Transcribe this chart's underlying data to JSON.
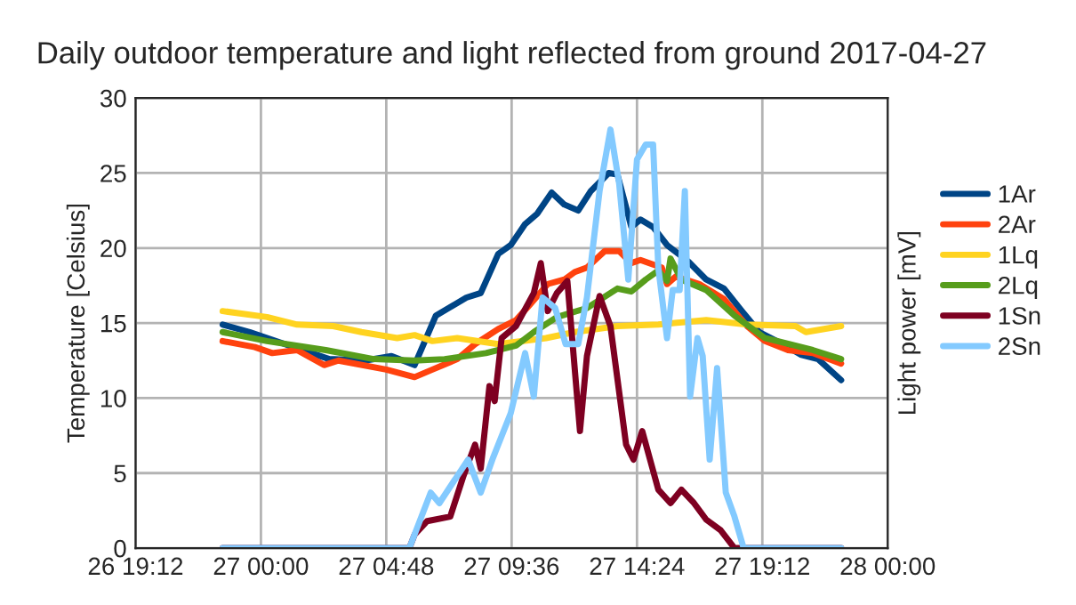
{
  "chart_data": {
    "type": "line",
    "title": "Daily outdoor temperature and light reflected from ground 2017-04-27",
    "ylabel": "Temperature [Celsius]",
    "y2label": "Light power [mV]",
    "xlim": [
      "2017-04-26T19:12",
      "2017-04-28T00:00"
    ],
    "xticks": [
      {
        "value": "2017-04-26T19:12",
        "label": "26 19:12"
      },
      {
        "value": "2017-04-27T00:00",
        "label": "27 00:00"
      },
      {
        "value": "2017-04-27T04:48",
        "label": "27 04:48"
      },
      {
        "value": "2017-04-27T09:36",
        "label": "27 09:36"
      },
      {
        "value": "2017-04-27T14:24",
        "label": "27 14:24"
      },
      {
        "value": "2017-04-27T19:12",
        "label": "27 19:12"
      },
      {
        "value": "2017-04-28T00:00",
        "label": "28 00:00"
      }
    ],
    "ylim": [
      0,
      30
    ],
    "yticks": [
      0,
      5,
      10,
      15,
      20,
      25,
      30
    ],
    "grid": true,
    "legend": "right",
    "marker": "none",
    "line_style": "solid",
    "series": [
      {
        "name": "1Ar",
        "color": "#004586",
        "x": [
          "2017-04-26T22:32",
          "2017-04-26T23:34",
          "2017-04-27T00:55",
          "2017-04-27T02:37",
          "2017-04-27T03:59",
          "2017-04-27T05:00",
          "2017-04-27T05:53",
          "2017-04-27T06:42",
          "2017-04-27T07:52",
          "2017-04-27T08:25",
          "2017-04-27T09:05",
          "2017-04-27T09:34",
          "2017-04-27T10:07",
          "2017-04-27T10:35",
          "2017-04-27T11:08",
          "2017-04-27T11:37",
          "2017-04-27T12:09",
          "2017-04-27T12:38",
          "2017-04-27T13:19",
          "2017-04-27T13:39",
          "2017-04-27T14:11",
          "2017-04-27T14:32",
          "2017-04-27T15:01",
          "2017-04-27T15:33",
          "2017-04-27T16:22",
          "2017-04-27T17:03",
          "2017-04-27T17:44",
          "2017-04-27T18:25",
          "2017-04-27T19:05",
          "2017-04-27T19:59",
          "2017-04-27T20:40",
          "2017-04-27T21:20",
          "2017-04-27T22:13"
        ],
        "values": [
          14.9,
          14.4,
          13.6,
          12.6,
          12.5,
          12.8,
          12.2,
          15.5,
          16.7,
          17.0,
          19.6,
          20.2,
          21.6,
          22.3,
          23.7,
          22.9,
          22.5,
          23.8,
          25.0,
          24.9,
          21.4,
          21.9,
          21.4,
          20.2,
          19.1,
          17.9,
          17.3,
          15.8,
          14.4,
          13.6,
          12.9,
          12.6,
          11.2
        ]
      },
      {
        "name": "2Ar",
        "color": "#ff420e",
        "x": [
          "2017-04-26T22:32",
          "2017-04-26T23:46",
          "2017-04-27T00:26",
          "2017-04-27T01:23",
          "2017-04-27T02:25",
          "2017-04-27T02:58",
          "2017-04-27T04:48",
          "2017-04-27T05:53",
          "2017-04-27T06:34",
          "2017-04-27T07:31",
          "2017-04-27T08:12",
          "2017-04-27T09:05",
          "2017-04-27T09:46",
          "2017-04-27T10:14",
          "2017-04-27T10:59",
          "2017-04-27T11:37",
          "2017-04-27T12:01",
          "2017-04-27T12:29",
          "2017-04-27T13:10",
          "2017-04-27T13:43",
          "2017-04-27T14:11",
          "2017-04-27T14:32",
          "2017-04-27T15:21",
          "2017-04-27T15:33",
          "2017-04-27T15:53",
          "2017-04-27T16:47",
          "2017-04-27T17:44",
          "2017-04-27T18:37",
          "2017-04-27T19:18",
          "2017-04-27T20:11",
          "2017-04-27T21:08",
          "2017-04-27T22:13"
        ],
        "values": [
          13.8,
          13.4,
          13.0,
          13.2,
          12.2,
          12.5,
          11.9,
          11.4,
          11.9,
          12.6,
          13.6,
          14.6,
          15.2,
          16.1,
          17.6,
          17.9,
          18.4,
          18.7,
          19.8,
          19.8,
          19.0,
          19.2,
          18.7,
          17.6,
          18.1,
          17.6,
          16.6,
          14.8,
          13.8,
          13.2,
          13.0,
          12.3
        ]
      },
      {
        "name": "1Lq",
        "color": "#ffd320",
        "x": [
          "2017-04-26T22:32",
          "2017-04-27T00:14",
          "2017-04-27T01:23",
          "2017-04-27T02:46",
          "2017-04-27T03:51",
          "2017-04-27T05:13",
          "2017-04-27T05:53",
          "2017-04-27T06:34",
          "2017-04-27T07:31",
          "2017-04-27T09:05",
          "2017-04-27T10:55",
          "2017-04-27T12:01",
          "2017-04-27T13:39",
          "2017-04-27T15:13",
          "2017-04-27T17:03",
          "2017-04-27T18:37",
          "2017-04-27T20:28",
          "2017-04-27T20:52",
          "2017-04-27T22:13"
        ],
        "values": [
          15.8,
          15.4,
          14.9,
          14.8,
          14.4,
          14.0,
          14.2,
          13.8,
          14.0,
          13.6,
          14.0,
          14.4,
          14.8,
          14.9,
          15.2,
          14.9,
          14.8,
          14.4,
          14.8
        ]
      },
      {
        "name": "2Lq",
        "color": "#579d1c",
        "x": [
          "2017-04-26T22:32",
          "2017-04-27T00:14",
          "2017-04-27T02:29",
          "2017-04-27T04:19",
          "2017-04-27T05:53",
          "2017-04-27T07:02",
          "2017-04-27T08:37",
          "2017-04-27T09:46",
          "2017-04-27T10:27",
          "2017-04-27T11:20",
          "2017-04-27T12:29",
          "2017-04-27T13:39",
          "2017-04-27T14:11",
          "2017-04-27T14:44",
          "2017-04-27T15:13",
          "2017-04-27T15:33",
          "2017-04-27T15:41",
          "2017-04-27T16:06",
          "2017-04-27T17:03",
          "2017-04-27T18:08",
          "2017-04-27T19:18",
          "2017-04-27T21:08",
          "2017-04-27T22:13"
        ],
        "values": [
          14.4,
          13.8,
          13.2,
          12.6,
          12.5,
          12.6,
          13.0,
          13.5,
          14.4,
          15.4,
          16.0,
          17.3,
          17.1,
          17.9,
          18.5,
          17.8,
          19.3,
          17.9,
          17.2,
          15.5,
          14.0,
          13.2,
          12.6
        ]
      },
      {
        "name": "1Sn",
        "color": "#7e0021",
        "x": [
          "2017-04-26T22:32",
          "2017-04-27T05:41",
          "2017-04-27T05:53",
          "2017-04-27T06:22",
          "2017-04-27T07:15",
          "2017-04-27T07:44",
          "2017-04-27T08:12",
          "2017-04-27T08:25",
          "2017-04-27T08:45",
          "2017-04-27T08:57",
          "2017-04-27T09:13",
          "2017-04-27T09:46",
          "2017-04-27T10:27",
          "2017-04-27T10:43",
          "2017-04-27T10:59",
          "2017-04-27T11:20",
          "2017-04-27T11:44",
          "2017-04-27T12:13",
          "2017-04-27T12:29",
          "2017-04-27T12:58",
          "2017-04-27T13:23",
          "2017-04-27T13:59",
          "2017-04-27T14:16",
          "2017-04-27T14:36",
          "2017-04-27T15:13",
          "2017-04-27T15:41",
          "2017-04-27T16:06",
          "2017-04-27T16:35",
          "2017-04-27T17:03",
          "2017-04-27T17:36",
          "2017-04-27T18:08",
          "2017-04-27T22:13"
        ],
        "values": [
          0,
          0,
          0.9,
          1.8,
          2.1,
          4.7,
          6.9,
          5.3,
          10.8,
          9.8,
          14.0,
          14.8,
          17.0,
          19.0,
          15.8,
          17.0,
          17.8,
          7.8,
          12.8,
          16.8,
          14.8,
          6.9,
          5.9,
          7.8,
          3.9,
          3.0,
          3.9,
          3.0,
          1.9,
          1.2,
          0,
          0
        ]
      },
      {
        "name": "2Sn",
        "color": "#83caff",
        "x": [
          "2017-04-26T22:32",
          "2017-04-27T05:41",
          "2017-04-27T06:30",
          "2017-04-27T06:50",
          "2017-04-27T07:56",
          "2017-04-27T08:25",
          "2017-04-27T08:53",
          "2017-04-27T09:34",
          "2017-04-27T10:07",
          "2017-04-27T10:27",
          "2017-04-27T10:47",
          "2017-04-27T11:16",
          "2017-04-27T11:40",
          "2017-04-27T12:09",
          "2017-04-27T12:29",
          "2017-04-27T12:58",
          "2017-04-27T13:23",
          "2017-04-27T13:43",
          "2017-04-27T14:04",
          "2017-04-27T14:24",
          "2017-04-27T14:44",
          "2017-04-27T15:01",
          "2017-04-27T15:13",
          "2017-04-27T15:33",
          "2017-04-27T15:46",
          "2017-04-27T16:02",
          "2017-04-27T16:14",
          "2017-04-27T16:26",
          "2017-04-27T16:43",
          "2017-04-27T16:55",
          "2017-04-27T17:11",
          "2017-04-27T17:28",
          "2017-04-27T17:48",
          "2017-04-27T18:08",
          "2017-04-27T18:29",
          "2017-04-27T22:13"
        ],
        "values": [
          0,
          0,
          3.7,
          3.0,
          5.9,
          3.7,
          6.0,
          9.0,
          13.0,
          10.1,
          16.7,
          16.0,
          13.6,
          13.6,
          16.7,
          23.8,
          27.9,
          24.3,
          17.9,
          25.9,
          26.9,
          26.9,
          18.7,
          14.0,
          17.2,
          17.2,
          23.8,
          10.1,
          14.0,
          12.8,
          5.9,
          12.0,
          3.7,
          2.1,
          0,
          0
        ]
      }
    ]
  }
}
